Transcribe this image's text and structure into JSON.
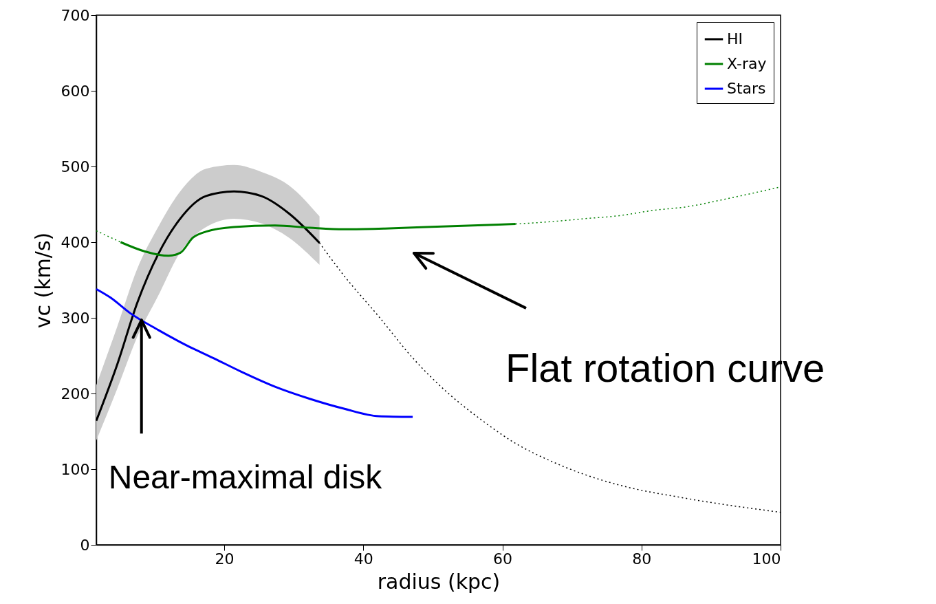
{
  "chart_data": {
    "type": "line",
    "xlabel": "radius (kpc)",
    "ylabel": "vc (km/s)",
    "xlim": [
      1.6,
      100
    ],
    "ylim": [
      0,
      700
    ],
    "xticks": [
      20,
      40,
      60,
      80,
      100
    ],
    "yticks": [
      0,
      100,
      200,
      300,
      400,
      500,
      600,
      700
    ],
    "grid": false,
    "legend": "top right",
    "marker": "none",
    "series": [
      {
        "name": "HI",
        "color": "#000000",
        "line_style": "solid",
        "x": [
          1.6,
          4.6,
          7.5,
          10.5,
          13.5,
          17.4,
          21.4,
          25.3,
          29.3,
          33.7
        ],
        "values": [
          164,
          238,
          320,
          384,
          429,
          461,
          467,
          461,
          438,
          399
        ],
        "lower": [
          138,
          206,
          275,
          329,
          384,
          420,
          431,
          425,
          406,
          370
        ],
        "upper": [
          211,
          288,
          365,
          420,
          465,
          497,
          502,
          493,
          475,
          434
        ]
      },
      {
        "color": "#000000",
        "line_style": "dotted",
        "x": [
          33.7,
          37.2,
          42.2,
          47.1,
          52.0,
          57.0,
          61.9,
          66.9,
          71.8,
          76.8,
          86.7,
          100
        ],
        "values": [
          399,
          356,
          302,
          247,
          202,
          165,
          134,
          111,
          93,
          79,
          61,
          43
        ]
      },
      {
        "name": "X-ray",
        "color": "#008000",
        "line_style": "solid",
        "x": [
          5.1,
          8.5,
          12.0,
          13.7,
          15.5,
          17.4,
          21.4,
          27.3,
          32.3,
          37.2,
          43.1,
          49.1,
          61.9
        ],
        "values": [
          400,
          388,
          382,
          386,
          406,
          414,
          420,
          422,
          419,
          417,
          418,
          420,
          424
        ]
      },
      {
        "color": "#008000",
        "line_style": "dotted",
        "x": [
          1.6,
          5.1
        ],
        "values": [
          415,
          400
        ]
      },
      {
        "color": "#008000",
        "line_style": "dotted",
        "x": [
          61.9,
          66.9,
          71.8,
          76.8,
          81.7,
          86.7,
          91.6,
          100
        ],
        "values": [
          424,
          427,
          431,
          435,
          442,
          447,
          456,
          473
        ]
      },
      {
        "name": "Stars",
        "color": "#0000ff",
        "line_style": "solid",
        "x": [
          1.6,
          3.6,
          6.5,
          10.5,
          14.5,
          18.4,
          22.4,
          27.3,
          32.3,
          37.2,
          42.2,
          47.1
        ],
        "values": [
          338,
          327,
          306,
          284,
          264,
          247,
          229,
          209,
          193,
          180,
          170,
          169
        ]
      }
    ],
    "annotations": [
      {
        "text": "Near-maximal disk",
        "x": 8.1,
        "y": 297
      },
      "Flat rotation curve"
    ]
  }
}
